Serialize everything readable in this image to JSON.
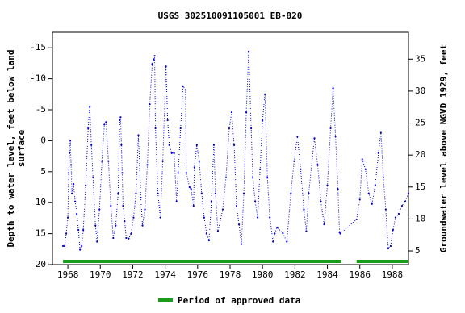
{
  "chart_data": {
    "type": "line",
    "title": "USGS 302510091105001 EB-820",
    "ylabel": [
      "Depth to water level, feet below land",
      "surface"
    ],
    "y2label": "Groundwater level above NGVD 1929, feet",
    "xlim": [
      1967.05,
      1989.0
    ],
    "xticks": [
      1968,
      1970,
      1972,
      1974,
      1976,
      1978,
      1980,
      1982,
      1984,
      1986,
      1988
    ],
    "ylim": [
      -17.5,
      20
    ],
    "y_inverted": true,
    "yticks": [
      -15,
      -10,
      -5,
      0,
      5,
      10,
      15,
      20
    ],
    "y2lim": [
      2.86,
      39.2
    ],
    "y2ticks": [
      5,
      10,
      15,
      20,
      25,
      30,
      35
    ],
    "series": [
      {
        "color": "#0000cc",
        "x": [
          1967.7,
          1967.8,
          1967.9,
          1968.0,
          1968.05,
          1968.1,
          1968.15,
          1968.2,
          1968.25,
          1968.35,
          1968.45,
          1968.55,
          1968.65,
          1968.75,
          1968.85,
          1968.95,
          1969.1,
          1969.25,
          1969.35,
          1969.45,
          1969.55,
          1969.7,
          1969.8,
          1969.95,
          1970.1,
          1970.25,
          1970.35,
          1970.5,
          1970.65,
          1970.8,
          1970.95,
          1971.1,
          1971.2,
          1971.25,
          1971.3,
          1971.35,
          1971.4,
          1971.5,
          1971.6,
          1971.75,
          1971.9,
          1972.05,
          1972.2,
          1972.35,
          1972.5,
          1972.6,
          1972.75,
          1972.9,
          1973.05,
          1973.2,
          1973.3,
          1973.35,
          1973.4,
          1973.55,
          1973.7,
          1973.85,
          1974.05,
          1974.15,
          1974.25,
          1974.4,
          1974.55,
          1974.7,
          1974.8,
          1974.95,
          1975.1,
          1975.25,
          1975.3,
          1975.5,
          1975.6,
          1975.75,
          1975.8,
          1975.95,
          1976.1,
          1976.25,
          1976.4,
          1976.55,
          1976.7,
          1976.85,
          1977.0,
          1977.1,
          1977.25,
          1977.55,
          1977.75,
          1977.95,
          1978.1,
          1978.25,
          1978.4,
          1978.55,
          1978.7,
          1978.85,
          1979.0,
          1979.15,
          1979.3,
          1979.4,
          1979.55,
          1979.7,
          1979.85,
          1980.0,
          1980.15,
          1980.3,
          1980.45,
          1980.65,
          1980.75,
          1980.9,
          1981.25,
          1981.5,
          1981.75,
          1981.95,
          1982.15,
          1982.35,
          1982.55,
          1982.7,
          1982.85,
          1983.2,
          1983.4,
          1983.6,
          1983.8,
          1984.0,
          1984.2,
          1984.35,
          1984.5,
          1984.65,
          1984.75,
          1984.8,
          1985.8,
          1986.0,
          1986.15,
          1986.35,
          1986.55,
          1986.75,
          1986.95,
          1987.15,
          1987.3,
          1987.45,
          1987.6,
          1987.75,
          1987.9,
          1988.05,
          1988.2,
          1988.4,
          1988.6,
          1988.8,
          1989.0
        ],
        "values": [
          17,
          17,
          15,
          12.4,
          5.2,
          2,
          0,
          3.9,
          8.5,
          7,
          9.8,
          11.8,
          14.4,
          17.6,
          17,
          14.4,
          7.2,
          -2,
          -5.5,
          0.7,
          5.9,
          13.7,
          16.3,
          11.1,
          3.3,
          -2.6,
          -3,
          3.3,
          10.5,
          15.7,
          13.7,
          8.5,
          -3.3,
          -3.8,
          0.7,
          5.2,
          10.5,
          13,
          15.7,
          15.8,
          15,
          12.4,
          8.5,
          -0.9,
          9.2,
          13.7,
          11.1,
          3.9,
          -5.9,
          -12.4,
          -13.1,
          -13.7,
          -2,
          8.5,
          12.4,
          3.3,
          -12,
          -3.3,
          0.7,
          2,
          2,
          9.8,
          5.2,
          -2,
          -8.8,
          -8.2,
          5.2,
          7.5,
          7.8,
          10.5,
          4.3,
          0.7,
          3.3,
          8.5,
          12.4,
          15,
          16.1,
          9.8,
          0.7,
          8.5,
          14.6,
          11.1,
          5.9,
          -2,
          -4.6,
          0.7,
          10.5,
          13.5,
          16.7,
          8.5,
          -4.6,
          -14.4,
          -2,
          5.9,
          9.8,
          12.4,
          4.6,
          -3.3,
          -7.5,
          5.9,
          12.4,
          16.3,
          15,
          14,
          14.9,
          16.3,
          8.5,
          3.3,
          -0.7,
          4.6,
          11.1,
          14.6,
          8.5,
          -0.4,
          3.9,
          9.8,
          13.5,
          7.2,
          -2,
          -8.5,
          -0.7,
          7.8,
          14.8,
          15,
          12.7,
          9.5,
          3,
          4.6,
          8.5,
          10.2,
          7.2,
          2,
          -1.3,
          5.9,
          11.1,
          17.4,
          17,
          14.4,
          12.4,
          11.8,
          10.5,
          9.8,
          8.5
        ]
      }
    ],
    "approved_periods": [
      [
        1967.7,
        1984.85
      ],
      [
        1985.8,
        1989.0
      ]
    ],
    "approved_color": "#1a9c1a",
    "legend": "Period of approved data"
  }
}
